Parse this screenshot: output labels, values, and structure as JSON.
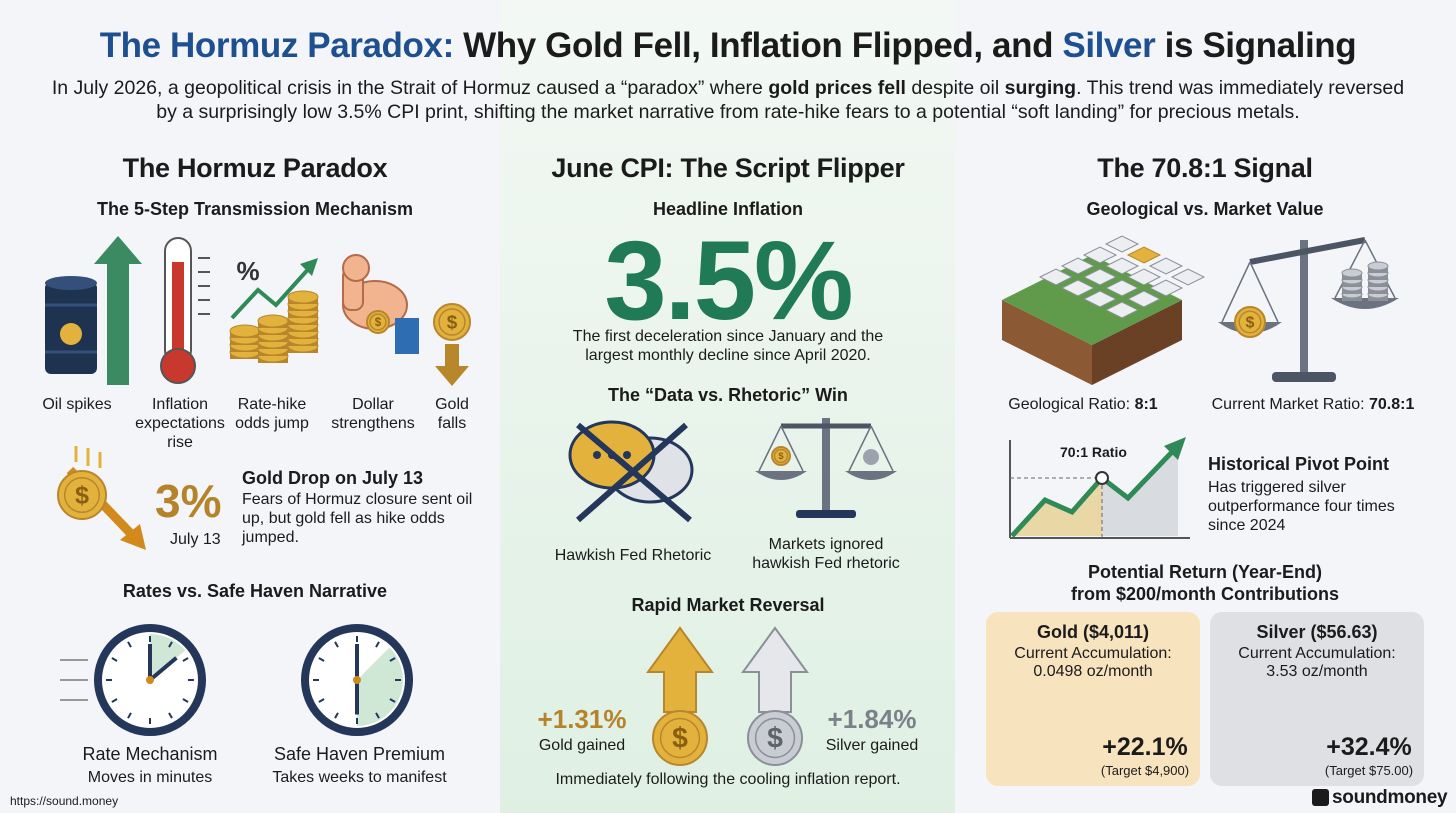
{
  "header": {
    "title": [
      "The Hormuz Paradox:",
      " Why Gold Fell, Inflation Flipped, and ",
      "Silver",
      " is Signaling"
    ],
    "subtitle": [
      "In July 2026, a geopolitical crisis in the Strait of Hormuz caused a “paradox” where ",
      "gold prices fell",
      " despite oil ",
      "surging",
      ". This trend was immediately reversed by a surprisingly low 3.5% CPI print, shifting the market narrative from rate-hike fears to a potential “soft landing” for precious metals."
    ]
  },
  "symbols": {
    "percent": "%",
    "dollar": "$"
  },
  "left": {
    "heading": "The Hormuz Paradox",
    "subheading": "The 5-Step Transmission Mechanism",
    "steps": [
      "Oil spikes",
      "Inflation expectations rise",
      "Rate-hike odds jump",
      "Dollar strengthens",
      "Gold falls"
    ],
    "gold_drop": {
      "big": "3%",
      "date": "July 13",
      "title": "Gold Drop on July 13",
      "text": "Fears of Hormuz closure sent oil up, but gold fell as hike odds jumped."
    },
    "rates": {
      "heading": "Rates vs. Safe Haven Narrative",
      "clocks": [
        {
          "label": "Rate Mechanism",
          "note": "Moves in minutes"
        },
        {
          "label": "Safe Haven Premium",
          "note": "Takes weeks to manifest"
        }
      ]
    }
  },
  "middle": {
    "heading": "June CPI: The Script Flipper",
    "subheading": "Headline Inflation",
    "big": "3.5%",
    "note": "The first deceleration since January and the largest monthly decline since April 2020.",
    "win": {
      "heading": "The “Data vs. Rhetoric” Win",
      "left": "Hawkish Fed Rhetoric",
      "right": "Markets ignored hawkish Fed rhetoric"
    },
    "reversal": {
      "heading": "Rapid Market Reversal",
      "gold": {
        "value": "+1.31%",
        "label": "Gold gained"
      },
      "silver": {
        "value": "+1.84%",
        "label": "Silver gained"
      },
      "note": "Immediately following the cooling inflation report."
    }
  },
  "right": {
    "heading": "The 70.8:1 Signal",
    "subheading": "Geological vs. Market Value",
    "geo": {
      "label": "Geological Ratio:",
      "value": "8:1"
    },
    "market": {
      "label": "Current Market Ratio:",
      "value": "70.8:1"
    },
    "chart_label": "70:1 Ratio",
    "pivot": {
      "title": "Historical Pivot Point",
      "text": "Has triggered silver outperformance four times since 2024"
    },
    "returns": {
      "heading": [
        "Potential Return (Year-End)",
        "from $200/month Contributions"
      ],
      "cards": [
        {
          "title": "Gold ($4,011)",
          "line1": "Current Accumulation:",
          "line2": "0.0498 oz/month",
          "return": "+22.1%",
          "target": "(Target $4,900)"
        },
        {
          "title": "Silver ($56.63)",
          "line1": "Current Accumulation:",
          "line2": "3.53 oz/month",
          "return": "+32.4%",
          "target": "(Target $75.00)"
        }
      ]
    }
  },
  "footer": {
    "url": "https://sound.money",
    "brand": "soundmoney"
  }
}
